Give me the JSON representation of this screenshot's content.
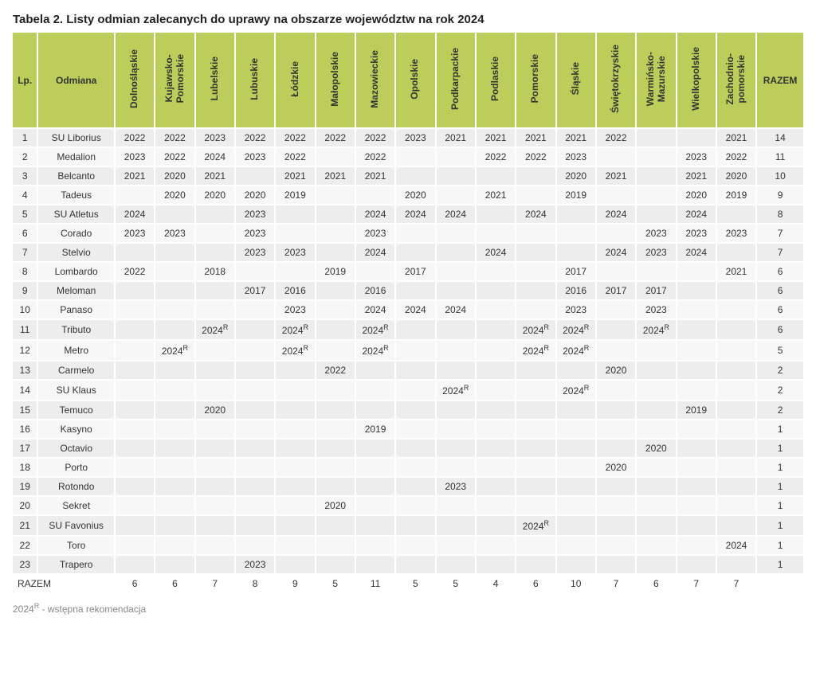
{
  "title": "Tabela 2. Listy odmian zalecanych do uprawy na obszarze województw na rok 2024",
  "footnote_label": "2024",
  "footnote_sup": "R",
  "footnote_text": " - wstępna rekomendacja",
  "colors": {
    "header_bg": "#bdcd5a",
    "row_odd": "#ededed",
    "row_even": "#f7f7f7",
    "page_bg": "#ffffff",
    "text": "#333333",
    "footnote": "#888888"
  },
  "fontsize": {
    "title": 15,
    "body": 12,
    "sup": 9
  },
  "headers": {
    "lp": "Lp.",
    "odmiana": "Odmiana",
    "razem": "RAZEM",
    "regions": [
      "Dolnośląskie",
      "Kujawsko-\nPomorskie",
      "Lubelskie",
      "Lubuskie",
      "Łódzkie",
      "Małopolskie",
      "Mazowieckie",
      "Opolskie",
      "Podkarpackie",
      "Podlaskie",
      "Pomorskie",
      "Śląskie",
      "Świętokrzyskie",
      "Warmińsko-\nMazurskie",
      "Wielkopolskie",
      "Zachodnio-\npomorskie"
    ]
  },
  "rows": [
    {
      "lp": "1",
      "name": "SU Liborius",
      "cells": [
        {
          "v": "2022"
        },
        {
          "v": "2022"
        },
        {
          "v": "2023"
        },
        {
          "v": "2022"
        },
        {
          "v": "2022"
        },
        {
          "v": "2022"
        },
        {
          "v": "2022"
        },
        {
          "v": "2023"
        },
        {
          "v": "2021"
        },
        {
          "v": "2021"
        },
        {
          "v": "2021"
        },
        {
          "v": "2021"
        },
        {
          "v": "2022"
        },
        {
          "v": ""
        },
        {
          "v": ""
        },
        {
          "v": "2021"
        }
      ],
      "razem": "14"
    },
    {
      "lp": "2",
      "name": "Medalion",
      "cells": [
        {
          "v": "2023"
        },
        {
          "v": "2022"
        },
        {
          "v": "2024"
        },
        {
          "v": "2023"
        },
        {
          "v": "2022"
        },
        {
          "v": ""
        },
        {
          "v": "2022"
        },
        {
          "v": ""
        },
        {
          "v": ""
        },
        {
          "v": "2022"
        },
        {
          "v": "2022"
        },
        {
          "v": "2023"
        },
        {
          "v": ""
        },
        {
          "v": ""
        },
        {
          "v": "2023"
        },
        {
          "v": "2022"
        }
      ],
      "razem": "11"
    },
    {
      "lp": "3",
      "name": "Belcanto",
      "cells": [
        {
          "v": "2021"
        },
        {
          "v": "2020"
        },
        {
          "v": "2021"
        },
        {
          "v": ""
        },
        {
          "v": "2021"
        },
        {
          "v": "2021"
        },
        {
          "v": "2021"
        },
        {
          "v": ""
        },
        {
          "v": ""
        },
        {
          "v": ""
        },
        {
          "v": ""
        },
        {
          "v": "2020"
        },
        {
          "v": "2021"
        },
        {
          "v": ""
        },
        {
          "v": "2021"
        },
        {
          "v": "2020"
        }
      ],
      "razem": "10"
    },
    {
      "lp": "4",
      "name": "Tadeus",
      "cells": [
        {
          "v": ""
        },
        {
          "v": "2020"
        },
        {
          "v": "2020"
        },
        {
          "v": "2020"
        },
        {
          "v": "2019"
        },
        {
          "v": ""
        },
        {
          "v": ""
        },
        {
          "v": "2020"
        },
        {
          "v": ""
        },
        {
          "v": "2021"
        },
        {
          "v": ""
        },
        {
          "v": "2019"
        },
        {
          "v": ""
        },
        {
          "v": ""
        },
        {
          "v": "2020"
        },
        {
          "v": "2019"
        }
      ],
      "razem": "9"
    },
    {
      "lp": "5",
      "name": "SU Atletus",
      "cells": [
        {
          "v": "2024"
        },
        {
          "v": ""
        },
        {
          "v": ""
        },
        {
          "v": "2023"
        },
        {
          "v": ""
        },
        {
          "v": ""
        },
        {
          "v": "2024"
        },
        {
          "v": "2024"
        },
        {
          "v": "2024"
        },
        {
          "v": ""
        },
        {
          "v": "2024"
        },
        {
          "v": ""
        },
        {
          "v": "2024"
        },
        {
          "v": ""
        },
        {
          "v": "2024"
        },
        {
          "v": ""
        }
      ],
      "razem": "8"
    },
    {
      "lp": "6",
      "name": "Corado",
      "cells": [
        {
          "v": "2023"
        },
        {
          "v": "2023"
        },
        {
          "v": ""
        },
        {
          "v": "2023"
        },
        {
          "v": ""
        },
        {
          "v": ""
        },
        {
          "v": "2023"
        },
        {
          "v": ""
        },
        {
          "v": ""
        },
        {
          "v": ""
        },
        {
          "v": ""
        },
        {
          "v": ""
        },
        {
          "v": ""
        },
        {
          "v": "2023"
        },
        {
          "v": "2023"
        },
        {
          "v": "2023"
        }
      ],
      "razem": "7"
    },
    {
      "lp": "7",
      "name": "Stelvio",
      "cells": [
        {
          "v": ""
        },
        {
          "v": ""
        },
        {
          "v": ""
        },
        {
          "v": "2023"
        },
        {
          "v": "2023"
        },
        {
          "v": ""
        },
        {
          "v": "2024"
        },
        {
          "v": ""
        },
        {
          "v": ""
        },
        {
          "v": "2024"
        },
        {
          "v": ""
        },
        {
          "v": ""
        },
        {
          "v": "2024"
        },
        {
          "v": "2023"
        },
        {
          "v": "2024"
        },
        {
          "v": ""
        }
      ],
      "razem": "7"
    },
    {
      "lp": "8",
      "name": "Lombardo",
      "cells": [
        {
          "v": "2022"
        },
        {
          "v": ""
        },
        {
          "v": "2018"
        },
        {
          "v": ""
        },
        {
          "v": ""
        },
        {
          "v": "2019"
        },
        {
          "v": ""
        },
        {
          "v": "2017"
        },
        {
          "v": ""
        },
        {
          "v": ""
        },
        {
          "v": ""
        },
        {
          "v": "2017"
        },
        {
          "v": ""
        },
        {
          "v": ""
        },
        {
          "v": ""
        },
        {
          "v": "2021"
        }
      ],
      "razem": "6"
    },
    {
      "lp": "9",
      "name": "Meloman",
      "cells": [
        {
          "v": ""
        },
        {
          "v": ""
        },
        {
          "v": ""
        },
        {
          "v": "2017"
        },
        {
          "v": "2016"
        },
        {
          "v": ""
        },
        {
          "v": "2016"
        },
        {
          "v": ""
        },
        {
          "v": ""
        },
        {
          "v": ""
        },
        {
          "v": ""
        },
        {
          "v": "2016"
        },
        {
          "v": "2017"
        },
        {
          "v": "2017"
        },
        {
          "v": ""
        },
        {
          "v": ""
        }
      ],
      "razem": "6"
    },
    {
      "lp": "10",
      "name": "Panaso",
      "cells": [
        {
          "v": ""
        },
        {
          "v": ""
        },
        {
          "v": ""
        },
        {
          "v": ""
        },
        {
          "v": "2023"
        },
        {
          "v": ""
        },
        {
          "v": "2024"
        },
        {
          "v": "2024"
        },
        {
          "v": "2024"
        },
        {
          "v": ""
        },
        {
          "v": ""
        },
        {
          "v": "2023"
        },
        {
          "v": ""
        },
        {
          "v": "2023"
        },
        {
          "v": ""
        },
        {
          "v": ""
        }
      ],
      "razem": "6"
    },
    {
      "lp": "11",
      "name": "Tributo",
      "cells": [
        {
          "v": ""
        },
        {
          "v": ""
        },
        {
          "v": "2024",
          "sup": "R"
        },
        {
          "v": ""
        },
        {
          "v": "2024",
          "sup": "R"
        },
        {
          "v": ""
        },
        {
          "v": "2024",
          "sup": "R"
        },
        {
          "v": ""
        },
        {
          "v": ""
        },
        {
          "v": ""
        },
        {
          "v": "2024",
          "sup": "R"
        },
        {
          "v": "2024",
          "sup": "R"
        },
        {
          "v": ""
        },
        {
          "v": "2024",
          "sup": "R"
        },
        {
          "v": ""
        },
        {
          "v": ""
        }
      ],
      "razem": "6"
    },
    {
      "lp": "12",
      "name": "Metro",
      "cells": [
        {
          "v": ""
        },
        {
          "v": "2024",
          "sup": "R"
        },
        {
          "v": ""
        },
        {
          "v": ""
        },
        {
          "v": "2024",
          "sup": "R"
        },
        {
          "v": ""
        },
        {
          "v": "2024",
          "sup": "R"
        },
        {
          "v": ""
        },
        {
          "v": ""
        },
        {
          "v": ""
        },
        {
          "v": "2024",
          "sup": "R"
        },
        {
          "v": "2024",
          "sup": "R"
        },
        {
          "v": ""
        },
        {
          "v": ""
        },
        {
          "v": ""
        },
        {
          "v": ""
        }
      ],
      "razem": "5"
    },
    {
      "lp": "13",
      "name": "Carmelo",
      "cells": [
        {
          "v": ""
        },
        {
          "v": ""
        },
        {
          "v": ""
        },
        {
          "v": ""
        },
        {
          "v": ""
        },
        {
          "v": "2022"
        },
        {
          "v": ""
        },
        {
          "v": ""
        },
        {
          "v": ""
        },
        {
          "v": ""
        },
        {
          "v": ""
        },
        {
          "v": ""
        },
        {
          "v": "2020"
        },
        {
          "v": ""
        },
        {
          "v": ""
        },
        {
          "v": ""
        }
      ],
      "razem": "2"
    },
    {
      "lp": "14",
      "name": "SU Klaus",
      "cells": [
        {
          "v": ""
        },
        {
          "v": ""
        },
        {
          "v": ""
        },
        {
          "v": ""
        },
        {
          "v": ""
        },
        {
          "v": ""
        },
        {
          "v": ""
        },
        {
          "v": ""
        },
        {
          "v": "2024",
          "sup": "R"
        },
        {
          "v": ""
        },
        {
          "v": ""
        },
        {
          "v": "2024",
          "sup": "R"
        },
        {
          "v": ""
        },
        {
          "v": ""
        },
        {
          "v": ""
        },
        {
          "v": ""
        }
      ],
      "razem": "2"
    },
    {
      "lp": "15",
      "name": "Temuco",
      "cells": [
        {
          "v": ""
        },
        {
          "v": ""
        },
        {
          "v": "2020"
        },
        {
          "v": ""
        },
        {
          "v": ""
        },
        {
          "v": ""
        },
        {
          "v": ""
        },
        {
          "v": ""
        },
        {
          "v": ""
        },
        {
          "v": ""
        },
        {
          "v": ""
        },
        {
          "v": ""
        },
        {
          "v": ""
        },
        {
          "v": ""
        },
        {
          "v": "2019"
        },
        {
          "v": ""
        }
      ],
      "razem": "2"
    },
    {
      "lp": "16",
      "name": "Kasyno",
      "cells": [
        {
          "v": ""
        },
        {
          "v": ""
        },
        {
          "v": ""
        },
        {
          "v": ""
        },
        {
          "v": ""
        },
        {
          "v": ""
        },
        {
          "v": "2019"
        },
        {
          "v": ""
        },
        {
          "v": ""
        },
        {
          "v": ""
        },
        {
          "v": ""
        },
        {
          "v": ""
        },
        {
          "v": ""
        },
        {
          "v": ""
        },
        {
          "v": ""
        },
        {
          "v": ""
        }
      ],
      "razem": "1"
    },
    {
      "lp": "17",
      "name": "Octavio",
      "cells": [
        {
          "v": ""
        },
        {
          "v": ""
        },
        {
          "v": ""
        },
        {
          "v": ""
        },
        {
          "v": ""
        },
        {
          "v": ""
        },
        {
          "v": ""
        },
        {
          "v": ""
        },
        {
          "v": ""
        },
        {
          "v": ""
        },
        {
          "v": ""
        },
        {
          "v": ""
        },
        {
          "v": ""
        },
        {
          "v": "2020"
        },
        {
          "v": ""
        },
        {
          "v": ""
        }
      ],
      "razem": "1"
    },
    {
      "lp": "18",
      "name": "Porto",
      "cells": [
        {
          "v": ""
        },
        {
          "v": ""
        },
        {
          "v": ""
        },
        {
          "v": ""
        },
        {
          "v": ""
        },
        {
          "v": ""
        },
        {
          "v": ""
        },
        {
          "v": ""
        },
        {
          "v": ""
        },
        {
          "v": ""
        },
        {
          "v": ""
        },
        {
          "v": ""
        },
        {
          "v": "2020"
        },
        {
          "v": ""
        },
        {
          "v": ""
        },
        {
          "v": ""
        }
      ],
      "razem": "1"
    },
    {
      "lp": "19",
      "name": "Rotondo",
      "cells": [
        {
          "v": ""
        },
        {
          "v": ""
        },
        {
          "v": ""
        },
        {
          "v": ""
        },
        {
          "v": ""
        },
        {
          "v": ""
        },
        {
          "v": ""
        },
        {
          "v": ""
        },
        {
          "v": "2023"
        },
        {
          "v": ""
        },
        {
          "v": ""
        },
        {
          "v": ""
        },
        {
          "v": ""
        },
        {
          "v": ""
        },
        {
          "v": ""
        },
        {
          "v": ""
        }
      ],
      "razem": "1"
    },
    {
      "lp": "20",
      "name": "Sekret",
      "cells": [
        {
          "v": ""
        },
        {
          "v": ""
        },
        {
          "v": ""
        },
        {
          "v": ""
        },
        {
          "v": ""
        },
        {
          "v": "2020"
        },
        {
          "v": ""
        },
        {
          "v": ""
        },
        {
          "v": ""
        },
        {
          "v": ""
        },
        {
          "v": ""
        },
        {
          "v": ""
        },
        {
          "v": ""
        },
        {
          "v": ""
        },
        {
          "v": ""
        },
        {
          "v": ""
        }
      ],
      "razem": "1"
    },
    {
      "lp": "21",
      "name": "SU Favonius",
      "cells": [
        {
          "v": ""
        },
        {
          "v": ""
        },
        {
          "v": ""
        },
        {
          "v": ""
        },
        {
          "v": ""
        },
        {
          "v": ""
        },
        {
          "v": ""
        },
        {
          "v": ""
        },
        {
          "v": ""
        },
        {
          "v": ""
        },
        {
          "v": "2024",
          "sup": "R"
        },
        {
          "v": ""
        },
        {
          "v": ""
        },
        {
          "v": ""
        },
        {
          "v": ""
        },
        {
          "v": ""
        }
      ],
      "razem": "1"
    },
    {
      "lp": "22",
      "name": "Toro",
      "cells": [
        {
          "v": ""
        },
        {
          "v": ""
        },
        {
          "v": ""
        },
        {
          "v": ""
        },
        {
          "v": ""
        },
        {
          "v": ""
        },
        {
          "v": ""
        },
        {
          "v": ""
        },
        {
          "v": ""
        },
        {
          "v": ""
        },
        {
          "v": ""
        },
        {
          "v": ""
        },
        {
          "v": ""
        },
        {
          "v": ""
        },
        {
          "v": ""
        },
        {
          "v": "2024"
        }
      ],
      "razem": "1"
    },
    {
      "lp": "23",
      "name": "Trapero",
      "cells": [
        {
          "v": ""
        },
        {
          "v": ""
        },
        {
          "v": ""
        },
        {
          "v": "2023"
        },
        {
          "v": ""
        },
        {
          "v": ""
        },
        {
          "v": ""
        },
        {
          "v": ""
        },
        {
          "v": ""
        },
        {
          "v": ""
        },
        {
          "v": ""
        },
        {
          "v": ""
        },
        {
          "v": ""
        },
        {
          "v": ""
        },
        {
          "v": ""
        },
        {
          "v": ""
        }
      ],
      "razem": "1"
    }
  ],
  "totals": {
    "label": "RAZEM",
    "values": [
      "6",
      "6",
      "7",
      "8",
      "9",
      "5",
      "11",
      "5",
      "5",
      "4",
      "6",
      "10",
      "7",
      "6",
      "7",
      "7"
    ],
    "grand": ""
  }
}
